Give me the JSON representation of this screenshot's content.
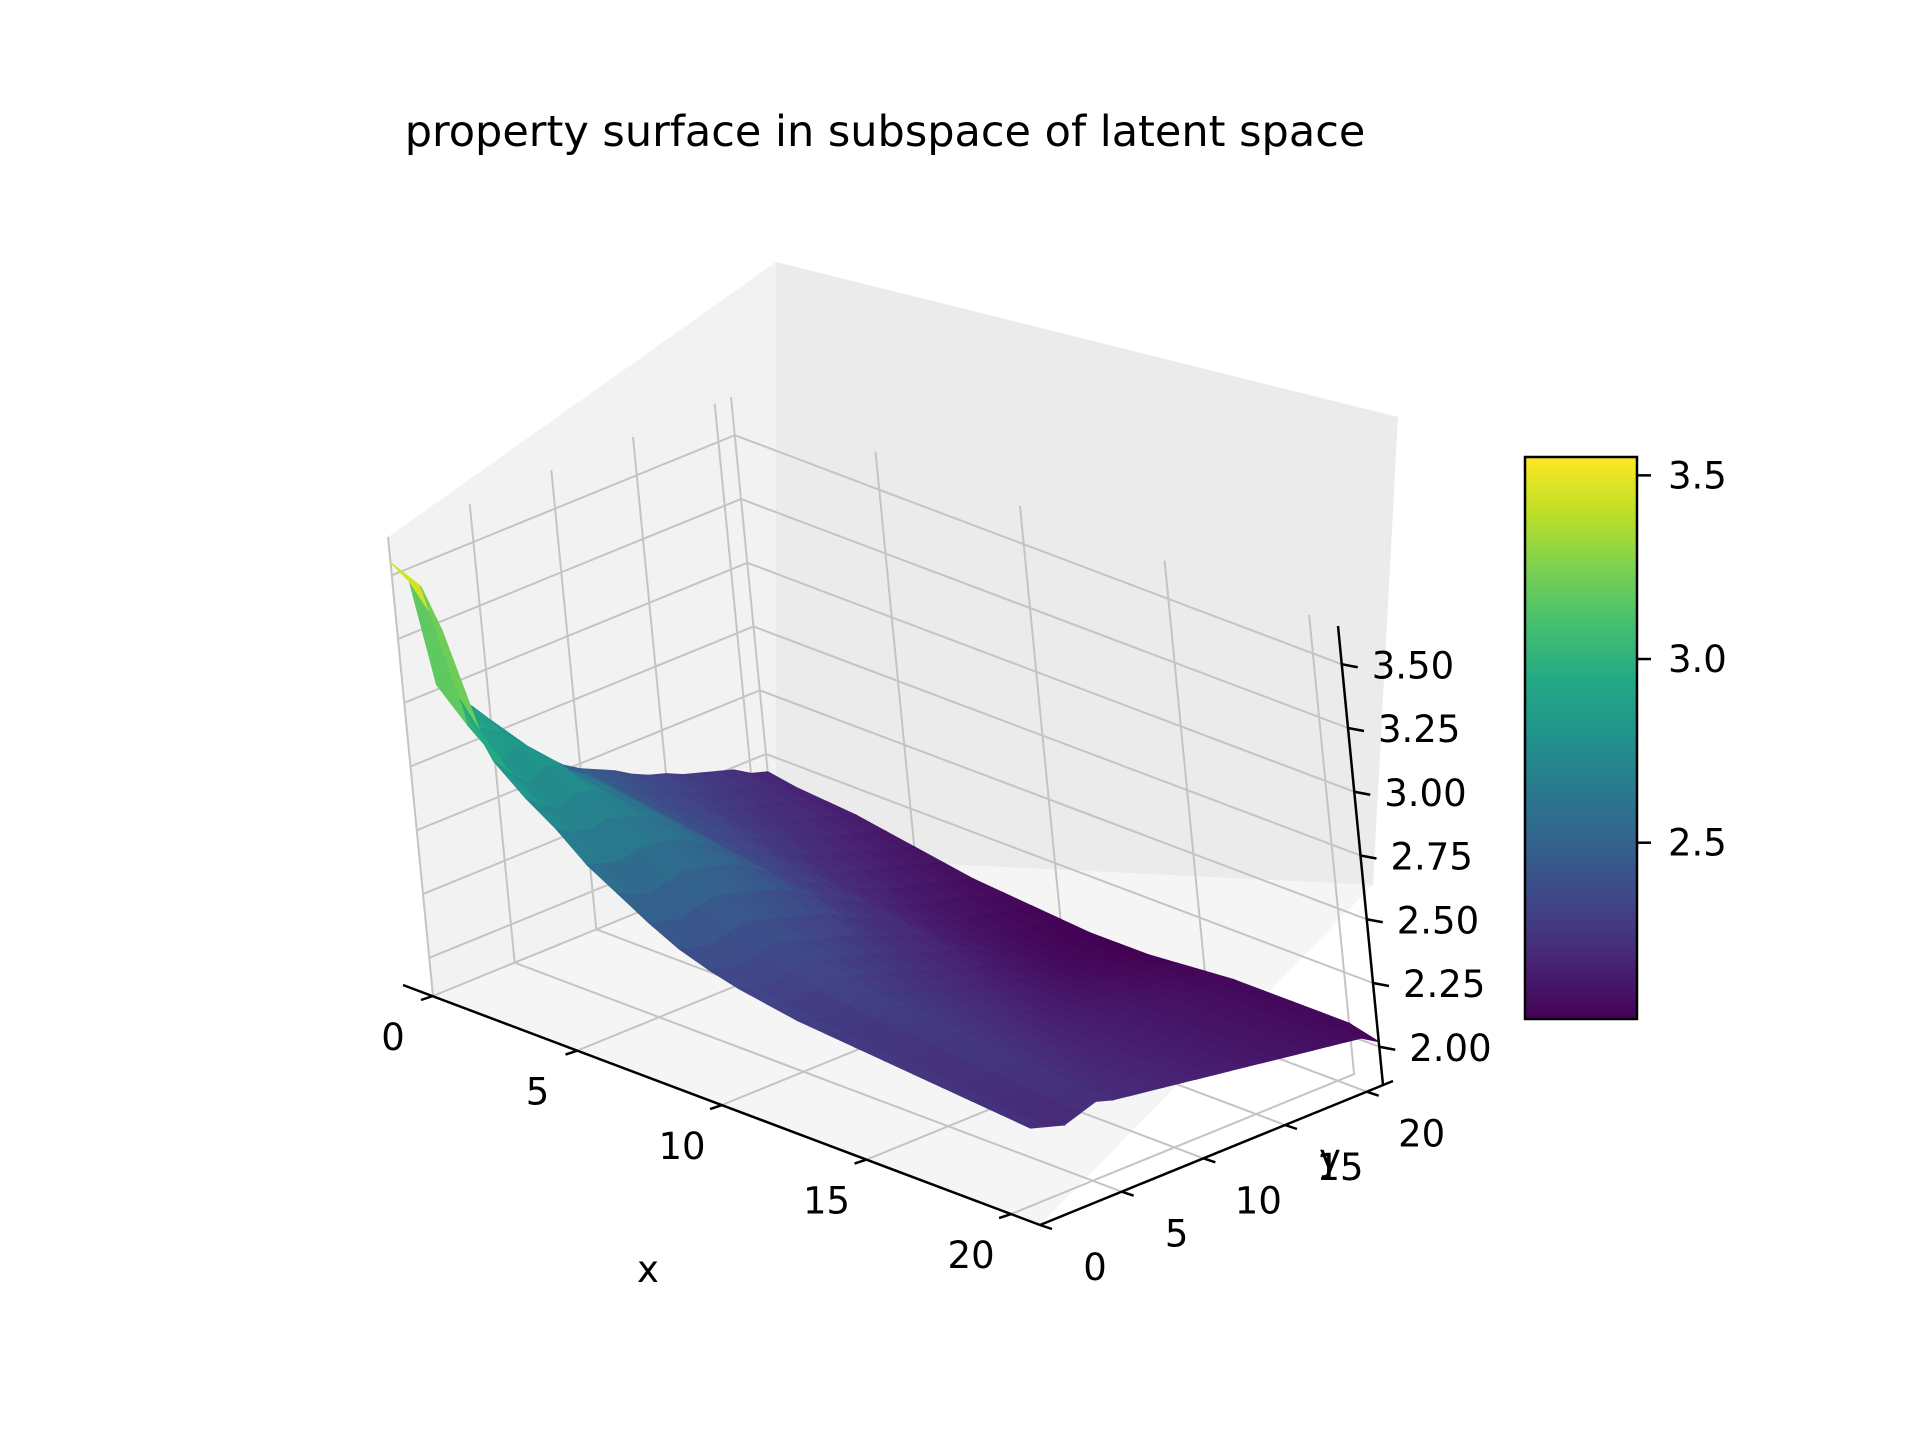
{
  "chart_data": {
    "type": "surface3d",
    "title": "property surface in subspace of latent space",
    "xlabel": "x",
    "ylabel": "y",
    "zlabel": "",
    "x_ticks": [
      "0",
      "5",
      "10",
      "15",
      "20"
    ],
    "y_ticks": [
      "0",
      "5",
      "10",
      "15",
      "20"
    ],
    "z_ticks": [
      "2.00",
      "2.25",
      "2.50",
      "2.75",
      "3.00",
      "3.25",
      "3.50"
    ],
    "xlim": [
      0,
      21
    ],
    "ylim": [
      0,
      21
    ],
    "zlim": [
      1.85,
      3.65
    ],
    "colormap": "viridis",
    "colorbar": {
      "min": 2.02,
      "max": 3.55,
      "ticks": [
        "2.5",
        "3.0",
        "3.5"
      ]
    },
    "grid": true,
    "surface_z": [
      [
        3.55,
        3.45,
        3.02,
        2.95,
        2.88,
        2.8,
        2.72,
        2.63,
        2.58,
        2.52,
        2.48,
        2.45,
        2.42,
        2.38,
        2.35,
        2.33,
        2.3,
        2.28,
        2.26,
        2.24,
        2.2,
        2.18
      ],
      [
        3.5,
        3.3,
        2.9,
        2.86,
        2.82,
        2.76,
        2.68,
        2.6,
        2.55,
        2.5,
        2.46,
        2.42,
        2.38,
        2.35,
        2.32,
        2.3,
        2.28,
        2.26,
        2.24,
        2.22,
        2.19,
        2.16
      ],
      [
        3.1,
        2.95,
        2.8,
        2.84,
        2.8,
        2.72,
        2.66,
        2.62,
        2.56,
        2.5,
        2.44,
        2.4,
        2.36,
        2.34,
        2.3,
        2.28,
        2.25,
        2.24,
        2.22,
        2.2,
        2.18,
        2.15
      ],
      [
        2.9,
        2.82,
        2.76,
        2.8,
        2.78,
        2.7,
        2.64,
        2.6,
        2.54,
        2.48,
        2.42,
        2.38,
        2.35,
        2.33,
        2.29,
        2.27,
        2.24,
        2.22,
        2.2,
        2.18,
        2.16,
        2.14
      ],
      [
        2.8,
        2.74,
        2.7,
        2.74,
        2.72,
        2.68,
        2.62,
        2.58,
        2.52,
        2.46,
        2.4,
        2.36,
        2.34,
        2.3,
        2.27,
        2.25,
        2.22,
        2.2,
        2.18,
        2.16,
        2.14,
        2.12
      ],
      [
        2.72,
        2.68,
        2.66,
        2.68,
        2.66,
        2.64,
        2.6,
        2.56,
        2.5,
        2.44,
        2.38,
        2.34,
        2.32,
        2.28,
        2.25,
        2.22,
        2.2,
        2.18,
        2.16,
        2.14,
        2.12,
        2.1
      ],
      [
        2.62,
        2.6,
        2.58,
        2.6,
        2.6,
        2.58,
        2.56,
        2.52,
        2.48,
        2.42,
        2.36,
        2.32,
        2.3,
        2.26,
        2.22,
        2.2,
        2.18,
        2.16,
        2.14,
        2.12,
        2.1,
        2.08
      ],
      [
        2.55,
        2.52,
        2.5,
        2.52,
        2.54,
        2.52,
        2.5,
        2.48,
        2.44,
        2.4,
        2.34,
        2.3,
        2.28,
        2.24,
        2.2,
        2.18,
        2.15,
        2.13,
        2.12,
        2.1,
        2.08,
        2.06
      ],
      [
        2.48,
        2.46,
        2.44,
        2.46,
        2.48,
        2.46,
        2.44,
        2.42,
        2.4,
        2.36,
        2.32,
        2.28,
        2.25,
        2.22,
        2.18,
        2.16,
        2.13,
        2.11,
        2.1,
        2.08,
        2.06,
        2.05
      ],
      [
        2.42,
        2.4,
        2.38,
        2.4,
        2.42,
        2.4,
        2.38,
        2.36,
        2.34,
        2.32,
        2.28,
        2.25,
        2.22,
        2.2,
        2.16,
        2.14,
        2.11,
        2.09,
        2.08,
        2.06,
        2.05,
        2.04
      ],
      [
        2.38,
        2.36,
        2.34,
        2.36,
        2.38,
        2.36,
        2.34,
        2.32,
        2.3,
        2.28,
        2.25,
        2.22,
        2.2,
        2.18,
        2.14,
        2.12,
        2.1,
        2.08,
        2.06,
        2.05,
        2.04,
        2.03
      ],
      [
        2.35,
        2.33,
        2.31,
        2.33,
        2.35,
        2.33,
        2.31,
        2.29,
        2.27,
        2.25,
        2.22,
        2.2,
        2.18,
        2.16,
        2.13,
        2.11,
        2.09,
        2.07,
        2.05,
        2.04,
        2.03,
        2.02
      ],
      [
        2.33,
        2.31,
        2.29,
        2.31,
        2.33,
        2.31,
        2.29,
        2.27,
        2.25,
        2.23,
        2.2,
        2.18,
        2.16,
        2.14,
        2.12,
        2.1,
        2.08,
        2.06,
        2.05,
        2.04,
        2.03,
        2.02
      ],
      [
        2.31,
        2.29,
        2.27,
        2.29,
        2.31,
        2.29,
        2.27,
        2.25,
        2.23,
        2.21,
        2.19,
        2.17,
        2.15,
        2.13,
        2.11,
        2.09,
        2.07,
        2.06,
        2.05,
        2.04,
        2.03,
        2.02
      ],
      [
        2.3,
        2.28,
        2.26,
        2.28,
        2.3,
        2.28,
        2.26,
        2.24,
        2.22,
        2.2,
        2.18,
        2.16,
        2.14,
        2.12,
        2.1,
        2.09,
        2.08,
        2.07,
        2.06,
        2.05,
        2.04,
        2.03
      ],
      [
        2.29,
        2.27,
        2.25,
        2.27,
        2.29,
        2.27,
        2.25,
        2.23,
        2.21,
        2.19,
        2.17,
        2.15,
        2.13,
        2.12,
        2.11,
        2.1,
        2.09,
        2.08,
        2.07,
        2.06,
        2.05,
        2.04
      ],
      [
        2.28,
        2.26,
        2.24,
        2.26,
        2.28,
        2.26,
        2.24,
        2.22,
        2.2,
        2.18,
        2.16,
        2.15,
        2.14,
        2.13,
        2.12,
        2.11,
        2.1,
        2.09,
        2.08,
        2.07,
        2.06,
        2.05
      ],
      [
        2.27,
        2.25,
        2.23,
        2.25,
        2.27,
        2.25,
        2.23,
        2.21,
        2.19,
        2.17,
        2.16,
        2.15,
        2.14,
        2.13,
        2.12,
        2.11,
        2.1,
        2.09,
        2.08,
        2.07,
        2.06,
        2.05
      ],
      [
        2.26,
        2.24,
        2.22,
        2.24,
        2.26,
        2.24,
        2.22,
        2.2,
        2.18,
        2.17,
        2.16,
        2.15,
        2.14,
        2.13,
        2.12,
        2.11,
        2.1,
        2.09,
        2.08,
        2.07,
        2.06,
        2.05
      ],
      [
        2.25,
        2.23,
        2.21,
        2.23,
        2.25,
        2.23,
        2.21,
        2.19,
        2.18,
        2.17,
        2.16,
        2.15,
        2.14,
        2.13,
        2.12,
        2.11,
        2.1,
        2.09,
        2.08,
        2.07,
        2.06,
        2.05
      ],
      [
        2.24,
        2.22,
        2.2,
        2.22,
        2.24,
        2.22,
        2.2,
        2.19,
        2.18,
        2.17,
        2.16,
        2.15,
        2.14,
        2.13,
        2.12,
        2.11,
        2.1,
        2.09,
        2.08,
        2.07,
        2.06,
        2.05
      ],
      [
        2.23,
        2.21,
        2.19,
        2.21,
        2.23,
        2.21,
        2.2,
        2.19,
        2.18,
        2.17,
        2.16,
        2.15,
        2.14,
        2.13,
        2.12,
        2.11,
        2.1,
        2.09,
        2.08,
        2.07,
        2.06,
        2.02
      ]
    ]
  }
}
